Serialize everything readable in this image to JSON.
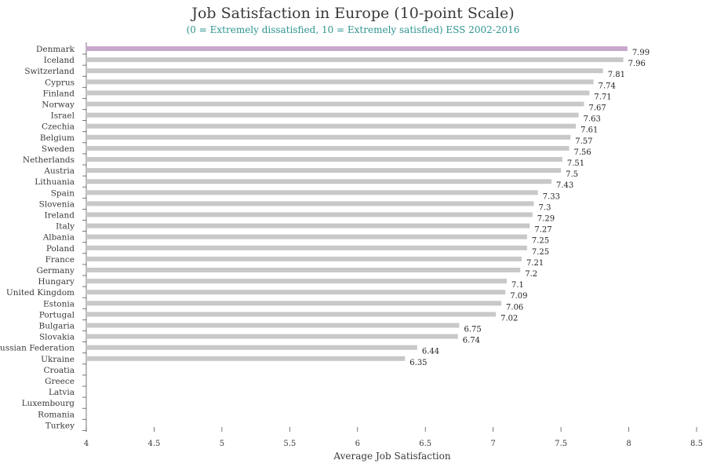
{
  "chart_data": {
    "type": "bar",
    "orientation": "horizontal",
    "title": "Job Satisfaction in Europe (10-point Scale)",
    "subtitle": "(0 = Extremely dissatisfied, 10 = Extremely satisfied) ESS 2002-2016",
    "xlabel": "Average Job Satisfaction",
    "ylabel": "",
    "xlim": [
      4,
      8.5
    ],
    "xticks": [
      "4",
      "4.5",
      "5",
      "5.5",
      "6",
      "6.5",
      "7",
      "7.5",
      "8",
      "8.5"
    ],
    "categories": [
      "Denmark",
      "Iceland",
      "Switzerland",
      "Cyprus",
      "Finland",
      "Norway",
      "Israel",
      "Czechia",
      "Belgium",
      "Sweden",
      "Netherlands",
      "Austria",
      "Lithuania",
      "Spain",
      "Slovenia",
      "Ireland",
      "Italy",
      "Albania",
      "Poland",
      "France",
      "Germany",
      "Hungary",
      "United Kingdom",
      "Estonia",
      "Portugal",
      "Bulgaria",
      "Slovakia",
      "Russian Federation",
      "Ukraine",
      "Croatia",
      "Greece",
      "Latvia",
      "Luxembourg",
      "Romania",
      "Turkey"
    ],
    "values": [
      7.99,
      7.96,
      7.81,
      7.74,
      7.71,
      7.67,
      7.63,
      7.61,
      7.57,
      7.56,
      7.51,
      7.5,
      7.43,
      7.33,
      7.3,
      7.29,
      7.27,
      7.25,
      7.25,
      7.21,
      7.2,
      7.1,
      7.09,
      7.06,
      7.02,
      6.75,
      6.74,
      6.44,
      6.35,
      null,
      null,
      null,
      null,
      null,
      null
    ],
    "labels": [
      "7.99",
      "7.96",
      "7.81",
      "7.74",
      "7.71",
      "7.67",
      "7.63",
      "7.61",
      "7.57",
      "7.56",
      "7.51",
      "7.5",
      "7.43",
      "7.33",
      "7.3",
      "7.29",
      "7.27",
      "7.25",
      "7.25",
      "7.21",
      "7.2",
      "7.1",
      "7.09",
      "7.06",
      "7.02",
      "6.75",
      "6.74",
      "6.44",
      "6.35",
      "",
      "",
      "",
      "",
      "",
      ""
    ],
    "highlight": "Denmark",
    "grid": false,
    "colors": {
      "bar": "#c8c8c8",
      "highlight": "#c8a8cc",
      "subtitle": "#2e9490",
      "text": "#3a3a3a",
      "axis": "#555555"
    }
  }
}
